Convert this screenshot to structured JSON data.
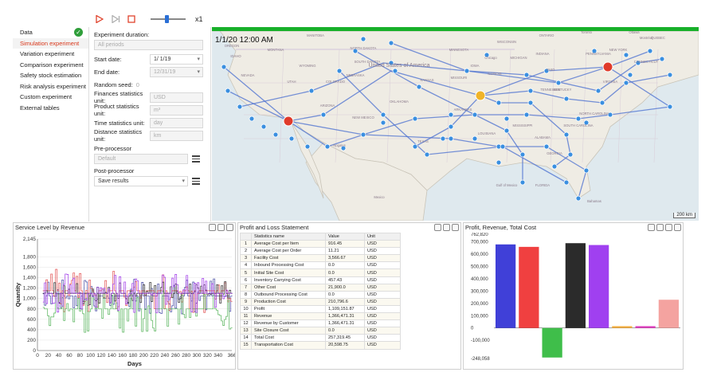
{
  "toolbar": {
    "speed": "x1",
    "speed_slider_level": 0.45
  },
  "sidebar": {
    "items": [
      {
        "label": "Data",
        "done": true
      },
      {
        "label": "Simulation experiment",
        "active": true
      },
      {
        "label": "Variation experiment"
      },
      {
        "label": "Comparison experiment"
      },
      {
        "label": "Safety stock estimation"
      },
      {
        "label": "Risk analysis experiment"
      },
      {
        "label": "Custom experiment"
      },
      {
        "label": "External tables"
      }
    ]
  },
  "form": {
    "experiment_duration_label": "Experiment duration:",
    "experiment_duration_value": "All periods",
    "start_date_label": "Start date:",
    "start_date_value": "1/  1/19",
    "end_date_label": "End date:",
    "end_date_value": "12/31/19",
    "random_seed_label": "Random seed:",
    "random_seed_value": "0",
    "finances_unit_label": "Finances statistics unit:",
    "finances_unit_value": "USD",
    "product_unit_label": "Product statistics unit:",
    "product_unit_value": "m³",
    "time_unit_label": "Time statistics unit:",
    "time_unit_value": "day",
    "distance_unit_label": "Distance statistics unit:",
    "distance_unit_value": "km",
    "preprocessor_label": "Pre-processor",
    "preprocessor_value": "Default",
    "postprocessor_label": "Post-processor",
    "postprocessor_value": "Save results"
  },
  "map": {
    "clock": "1/1/20 12:00 AM",
    "scale": "200 km",
    "labels": [
      {
        "t": "MANITOBA"
      },
      {
        "t": "ONTARIO"
      },
      {
        "t": "QUEBEC"
      },
      {
        "t": "NORTH DAKOTA"
      },
      {
        "t": "MONTANA"
      },
      {
        "t": "MINNESOTA"
      },
      {
        "t": "IDAHO"
      },
      {
        "t": "WYOMING"
      },
      {
        "t": "SOUTH DAKOTA"
      },
      {
        "t": "NEBRASKA"
      },
      {
        "t": "IOWA"
      },
      {
        "t": "NEVADA"
      },
      {
        "t": "UTAH"
      },
      {
        "t": "COLORADO"
      },
      {
        "t": "KANSAS"
      },
      {
        "t": "MISSOURI"
      },
      {
        "t": "United States of America"
      },
      {
        "t": "ARIZONA"
      },
      {
        "t": "NEW MEXICO"
      },
      {
        "t": "OKLAHOMA"
      },
      {
        "t": "TEXAS"
      },
      {
        "t": "ARKANSAS"
      },
      {
        "t": "LOUISIANA"
      },
      {
        "t": "MISSISSIPPI"
      },
      {
        "t": "ALABAMA"
      },
      {
        "t": "GEORGIA"
      },
      {
        "t": "FLORIDA"
      },
      {
        "t": "TENNESSEE"
      },
      {
        "t": "KENTUCKY"
      },
      {
        "t": "OHIO"
      },
      {
        "t": "INDIANA"
      },
      {
        "t": "PENNSYLVANIA"
      },
      {
        "t": "NEW YORK"
      },
      {
        "t": "VIRGINIA"
      },
      {
        "t": "SOUTH CAROLINA"
      },
      {
        "t": "NORTH CAROLINA"
      },
      {
        "t": "WISCONSIN"
      },
      {
        "t": "MICHIGAN"
      },
      {
        "t": "ILLINOIS"
      },
      {
        "t": "Toronto"
      },
      {
        "t": "Ottawa"
      },
      {
        "t": "Montréal"
      },
      {
        "t": "Chicago"
      },
      {
        "t": "Nogales"
      },
      {
        "t": "Bahamas"
      },
      {
        "t": "Gulf of Mexico"
      },
      {
        "t": "Mexico"
      },
      {
        "t": "CONNECTICUT"
      },
      {
        "t": "OREGON"
      }
    ]
  },
  "service_chart": {
    "title": "Service Level by Revenue",
    "ylabel": "Quantity",
    "xlabel": "Days"
  },
  "pl": {
    "title": "Profit and Loss Statement",
    "headers": [
      "",
      "Statistics name",
      "Value",
      "Unit"
    ],
    "rows": [
      [
        "1",
        "Average Cost per Item",
        "916.45",
        "USD"
      ],
      [
        "2",
        "Average Cost per Order",
        "11.21",
        "USD"
      ],
      [
        "3",
        "Facility Cost",
        "3,566.67",
        "USD"
      ],
      [
        "4",
        "Inbound Processing Cost",
        "0.0",
        "USD"
      ],
      [
        "5",
        "Initial Site Cost",
        "0.0",
        "USD"
      ],
      [
        "6",
        "Inventory Carrying Cost",
        "457.43",
        "USD"
      ],
      [
        "7",
        "Other Cost",
        "21,900.0",
        "USD"
      ],
      [
        "8",
        "Outbound Processing Cost",
        "0.0",
        "USD"
      ],
      [
        "9",
        "Production Cost",
        "210,796.6",
        "USD"
      ],
      [
        "10",
        "Profit",
        "1,109,151.87",
        "USD"
      ],
      [
        "11",
        "Revenue",
        "1,366,471.31",
        "USD"
      ],
      [
        "12",
        "Revenue by Customer",
        "1,366,471.31",
        "USD"
      ],
      [
        "13",
        "Site Closure Cost",
        "0.0",
        "USD"
      ],
      [
        "14",
        "Total Cost",
        "257,319.45",
        "USD"
      ],
      [
        "15",
        "Transportation Cost",
        "20,598.75",
        "USD"
      ]
    ]
  },
  "chart_data": [
    {
      "type": "line",
      "title": "Service Level by Revenue",
      "xlabel": "Days",
      "ylabel": "Quantity",
      "xlim": [
        0,
        366
      ],
      "ylim": [
        0,
        2145
      ],
      "x_ticks": [
        "0",
        "20",
        "40",
        "60",
        "80",
        "100",
        "120",
        "140",
        "160",
        "180",
        "200",
        "220",
        "240",
        "260",
        "280",
        "300",
        "320",
        "340",
        "366"
      ],
      "y_ticks": [
        "0",
        "200",
        "400",
        "600",
        "800",
        "1,000",
        "1,200",
        "1,400",
        "1,600",
        "1,800",
        "2,145"
      ],
      "series": [
        {
          "color": "#3a3f9e",
          "base": 1050,
          "amp": 350
        },
        {
          "color": "#e04848",
          "base": 1150,
          "amp": 420
        },
        {
          "color": "#4caf50",
          "base": 800,
          "amp": 450
        },
        {
          "color": "#222222",
          "base": 1100,
          "amp": 250
        },
        {
          "color": "#9b30e8",
          "base": 1100,
          "amp": 380
        }
      ]
    },
    {
      "type": "bar",
      "title": "Profit, Revenue, Total Cost",
      "ylim": [
        -248058,
        762820
      ],
      "y_ticks": [
        "762,820",
        "700,000",
        "600,000",
        "500,000",
        "400,000",
        "300,000",
        "200,000",
        "100,000",
        "0",
        "-100,000",
        "-248,058"
      ],
      "y_tick_values": [
        762820,
        700000,
        600000,
        500000,
        400000,
        300000,
        200000,
        100000,
        0,
        -100000,
        -248058
      ],
      "bars": [
        {
          "value": 680000,
          "color": "#4040d8"
        },
        {
          "value": 660000,
          "color": "#f04040"
        },
        {
          "value": -240000,
          "color": "#3fbe4a"
        },
        {
          "value": 690000,
          "color": "#2b2b2b"
        },
        {
          "value": 675000,
          "color": "#a040f0"
        },
        {
          "value": 15000,
          "color": "#f5b042"
        },
        {
          "value": 15000,
          "color": "#e040c0"
        },
        {
          "value": 230000,
          "color": "#f4a3a0"
        }
      ]
    }
  ]
}
